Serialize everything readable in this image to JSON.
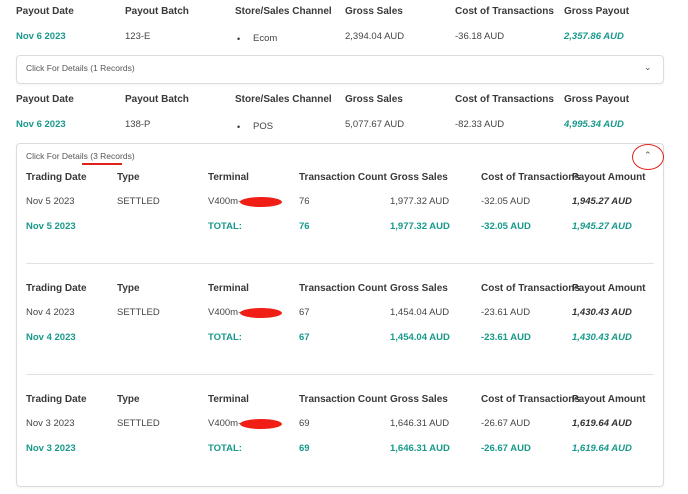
{
  "payouts": [
    {
      "headers": [
        "Payout Date",
        "Payout Batch",
        "Store/Sales Channel",
        "Gross Sales",
        "Cost of Transactions",
        "Gross Payout"
      ],
      "date": "Nov 6 2023",
      "batch": "123-E",
      "channel": "Ecom",
      "gross_sales": "2,394.04 AUD",
      "cost": "-36.18 AUD",
      "gross_payout": "2,357.86 AUD",
      "details_label": "Click For Details",
      "details_count": "(1 Records)",
      "expanded": false,
      "chevron_icon": "chevron-down-icon"
    },
    {
      "headers": [
        "Payout Date",
        "Payout Batch",
        "Store/Sales Channel",
        "Gross Sales",
        "Cost of Transactions",
        "Gross Payout"
      ],
      "date": "Nov 6 2023",
      "batch": "138-P",
      "channel": "POS",
      "gross_sales": "5,077.67 AUD",
      "cost": "-82.33 AUD",
      "gross_payout": "4,995.34 AUD",
      "details_label": "Click For Details",
      "details_count": "(3 Records)",
      "expanded": true,
      "chevron_icon": "chevron-up-icon"
    }
  ],
  "detail_headers": [
    "Trading Date",
    "Type",
    "Terminal",
    "Transaction Count",
    "Gross Sales",
    "Cost of Transactions",
    "Payout Amount"
  ],
  "total_label": "TOTAL:",
  "records": [
    {
      "date": "Nov 5 2023",
      "type": "SETTLED",
      "terminal": "V400m-",
      "count": "76",
      "gross": "1,977.32 AUD",
      "cost": "-32.05 AUD",
      "payout": "1,945.27 AUD"
    },
    {
      "date": "Nov 4 2023",
      "type": "SETTLED",
      "terminal": "V400m-",
      "count": "67",
      "gross": "1,454.04 AUD",
      "cost": "-23.61 AUD",
      "payout": "1,430.43 AUD"
    },
    {
      "date": "Nov 3 2023",
      "type": "SETTLED",
      "terminal": "V400m-",
      "count": "69",
      "gross": "1,646.31 AUD",
      "cost": "-26.67 AUD",
      "payout": "1,619.64 AUD"
    }
  ],
  "colors": {
    "accent": "#17998a",
    "annotation": "#e0201a"
  }
}
